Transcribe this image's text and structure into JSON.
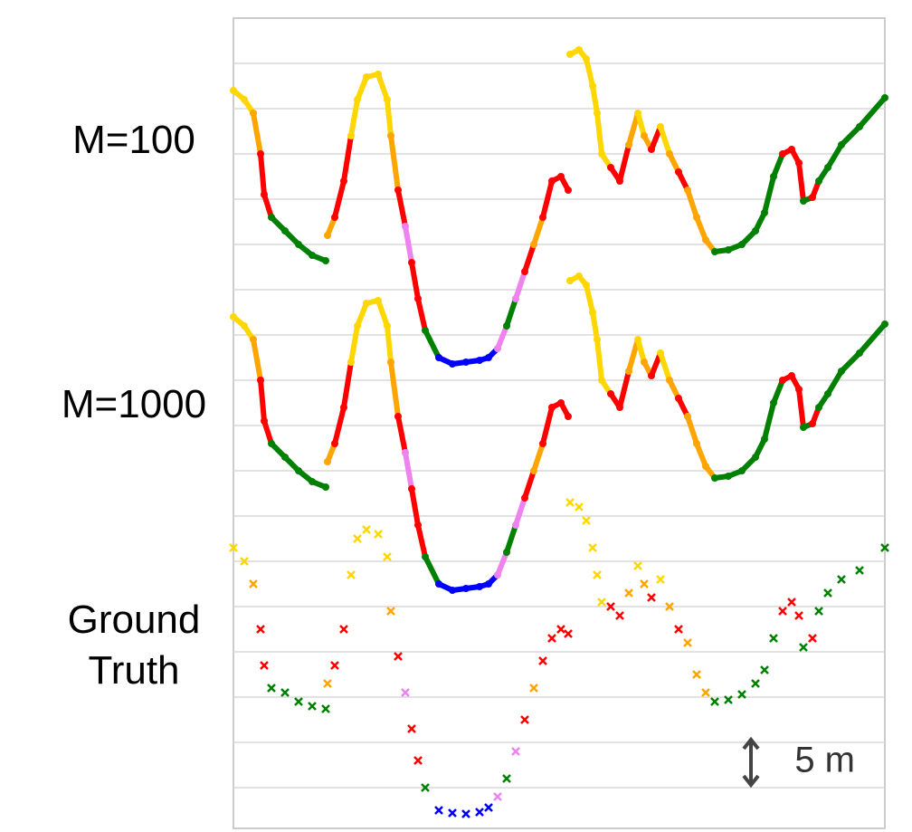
{
  "chart_data": {
    "type": "scatter",
    "x": [
      0,
      1.2,
      2.2,
      3,
      3.4,
      4.2,
      5.7,
      7.2,
      8.7,
      10.2,
      10.3,
      10.4,
      11.2,
      12.2,
      13,
      13.7,
      14.7,
      16,
      17,
      17.4,
      18.2,
      19,
      19.7,
      20.4,
      21.2,
      22.7,
      24.2,
      25.7,
      27.2,
      28.2,
      29.2,
      30.2,
      31.2,
      32.2,
      33.2,
      34.2,
      35.2,
      36.2,
      37,
      37.1,
      37.2,
      38.2,
      39,
      39.7,
      40.2,
      40.7,
      41.7,
      42.7,
      43.7,
      44.7,
      45.4,
      46.2,
      47.2,
      48.2,
      49.2,
      50.2,
      51.2,
      52.2,
      53.2,
      54.7,
      56.2,
      57.7,
      58.7,
      59.7,
      60.7,
      61.7,
      62.5,
      63,
      64,
      64.7,
      65.7,
      67.2,
      69.2,
      72
    ],
    "colors": [
      "gold",
      "gold",
      "orange",
      "red",
      "red",
      "green",
      "green",
      "green",
      "green",
      "green",
      null,
      "orange",
      "red",
      "red",
      "gold",
      "gold",
      "gold",
      "gold",
      "gold",
      "orange",
      "red",
      "violet",
      "red",
      "red",
      "green",
      "blue",
      "blue",
      "blue",
      "blue",
      "blue",
      "violet",
      "green",
      "violet",
      "red",
      "orange",
      "red",
      "red",
      "red",
      "red",
      null,
      "gold",
      "gold",
      "gold",
      "gold",
      "gold",
      "gold",
      "red",
      "red",
      "orange",
      "gold",
      "orange",
      "red",
      "gold",
      "orange",
      "red",
      "orange",
      "orange",
      "orange",
      "green",
      "green",
      "green",
      "green",
      "green",
      "green",
      "red",
      "red",
      "red",
      "green",
      "red",
      "green",
      "green",
      "green",
      "green",
      "green"
    ],
    "series": [
      {
        "name": "M=100",
        "marker": "dot",
        "values": [
          81.5,
          80.5,
          79,
          74.5,
          70,
          67.5,
          66,
          64.5,
          63.3,
          62.7,
          null,
          65.5,
          67.5,
          71.5,
          76.5,
          80.5,
          83,
          83.3,
          80.5,
          76.5,
          70.5,
          66.5,
          62.5,
          58.5,
          55,
          52,
          51.3,
          51.5,
          51.7,
          52,
          53,
          55.5,
          58.5,
          61.5,
          64.5,
          67.5,
          71.5,
          72,
          70.5,
          null,
          85.5,
          86,
          85,
          82,
          79,
          74.5,
          73,
          71.5,
          75.5,
          79,
          76.5,
          75,
          77.5,
          74.5,
          72.5,
          70.5,
          67.5,
          65,
          63.7,
          63.9,
          64.5,
          66,
          68,
          72,
          74.5,
          75,
          73.5,
          69.3,
          69.7,
          71.5,
          73,
          75.5,
          77.5,
          80.7
        ]
      },
      {
        "name": "M=1000",
        "marker": "dot",
        "values": [
          56.5,
          55.5,
          54,
          49.5,
          45,
          42.5,
          41,
          39.5,
          38.3,
          37.7,
          null,
          40.5,
          42.5,
          46.5,
          51.5,
          55.5,
          58,
          58.3,
          55.5,
          51.5,
          45.5,
          41.5,
          37.5,
          33.5,
          30,
          27,
          26.3,
          26.5,
          26.7,
          27,
          28,
          30.5,
          33.5,
          36.5,
          39.5,
          42.5,
          46.5,
          47,
          45.5,
          null,
          60.5,
          61,
          60,
          57,
          54,
          49.5,
          48,
          46.5,
          50.5,
          54,
          51.5,
          50,
          52.5,
          49.5,
          47.5,
          45.5,
          42.5,
          40,
          38.7,
          38.9,
          39.5,
          41,
          43,
          47,
          49.5,
          50,
          48.5,
          44.3,
          44.7,
          46.5,
          48,
          50.5,
          52.5,
          55.7
        ]
      },
      {
        "name": "Ground Truth",
        "marker": "cross",
        "values": [
          31,
          29.5,
          27,
          22,
          18,
          15.5,
          15,
          14,
          13.5,
          13.2,
          null,
          16,
          18,
          22,
          28,
          32,
          33,
          32.5,
          30,
          24,
          19,
          15,
          11,
          7.5,
          4.5,
          2,
          1.7,
          1.6,
          1.8,
          2.3,
          3.5,
          5.5,
          8.5,
          12,
          15.5,
          18.5,
          21,
          22,
          21.5,
          null,
          36,
          35.5,
          34,
          31,
          28,
          25,
          24.5,
          23.5,
          26,
          29,
          27,
          25.5,
          27.5,
          24.5,
          22,
          20.5,
          17,
          15,
          14,
          14.2,
          14.8,
          16,
          17.5,
          21,
          24,
          25,
          23.5,
          20,
          21,
          24,
          26,
          27.5,
          28.5,
          31
        ]
      }
    ],
    "scale_bar": {
      "value": 5,
      "label": "5 m"
    }
  }
}
